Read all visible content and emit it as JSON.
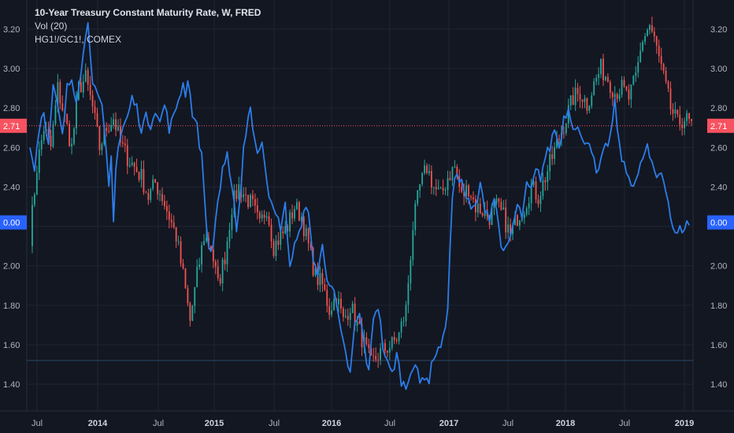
{
  "legend": {
    "title": "10-Year Treasury Constant Maturity Rate, W, FRED",
    "volume": "Vol (20)",
    "ratio": "HG1!/GC1!, COMEX"
  },
  "chart_data": {
    "type": "candlestick",
    "y_ticks": [
      "3.20",
      "3.00",
      "2.80",
      "2.60",
      "2.40",
      "2.20",
      "2.00",
      "1.80",
      "1.60",
      "1.40"
    ],
    "x_ticks": [
      "Jul",
      "2014",
      "Jul",
      "2015",
      "Jul",
      "2016",
      "Jul",
      "2017",
      "Jul",
      "2018",
      "Jul",
      "2019"
    ],
    "ylim": [
      1.32,
      3.28
    ],
    "last_price": {
      "label": "2.71",
      "value": 2.71,
      "color": "#f7525f"
    },
    "ratio_marker": {
      "label": "0.00",
      "value": 2.22,
      "color": "#2962ff"
    },
    "horizontal_line": 1.52,
    "colors": {
      "up": "#26a69a",
      "down": "#ef5350",
      "line": "#2b7de9",
      "bg": "#131722",
      "grid": "#1e2433"
    },
    "price_anchors": [
      [
        0,
        2.15
      ],
      [
        3,
        2.5
      ],
      [
        6,
        2.7
      ],
      [
        9,
        2.6
      ],
      [
        12,
        2.9
      ],
      [
        15,
        2.75
      ],
      [
        18,
        2.6
      ],
      [
        21,
        2.9
      ],
      [
        24,
        2.95
      ],
      [
        27,
        2.8
      ],
      [
        30,
        2.6
      ],
      [
        33,
        2.7
      ],
      [
        36,
        2.75
      ],
      [
        39,
        2.62
      ],
      [
        42,
        2.55
      ],
      [
        45,
        2.5
      ],
      [
        48,
        2.45
      ],
      [
        51,
        2.35
      ],
      [
        54,
        2.42
      ],
      [
        57,
        2.35
      ],
      [
        60,
        2.25
      ],
      [
        63,
        2.15
      ],
      [
        66,
        1.95
      ],
      [
        69,
        1.72
      ],
      [
        72,
        1.95
      ],
      [
        75,
        2.15
      ],
      [
        78,
        2.1
      ],
      [
        81,
        1.9
      ],
      [
        84,
        2.05
      ],
      [
        87,
        2.3
      ],
      [
        90,
        2.4
      ],
      [
        93,
        2.35
      ],
      [
        96,
        2.3
      ],
      [
        99,
        2.2
      ],
      [
        102,
        2.3
      ],
      [
        105,
        2.1
      ],
      [
        108,
        2.15
      ],
      [
        111,
        2.2
      ],
      [
        114,
        2.3
      ],
      [
        117,
        2.25
      ],
      [
        120,
        2.1
      ],
      [
        123,
        1.95
      ],
      [
        126,
        1.9
      ],
      [
        129,
        1.78
      ],
      [
        132,
        1.85
      ],
      [
        135,
        1.72
      ],
      [
        138,
        1.8
      ],
      [
        141,
        1.7
      ],
      [
        144,
        1.6
      ],
      [
        147,
        1.5
      ],
      [
        150,
        1.55
      ],
      [
        153,
        1.58
      ],
      [
        156,
        1.6
      ],
      [
        159,
        1.65
      ],
      [
        162,
        1.78
      ],
      [
        165,
        2.2
      ],
      [
        168,
        2.4
      ],
      [
        171,
        2.5
      ],
      [
        174,
        2.4
      ],
      [
        177,
        2.35
      ],
      [
        180,
        2.45
      ],
      [
        183,
        2.5
      ],
      [
        186,
        2.35
      ],
      [
        189,
        2.4
      ],
      [
        192,
        2.3
      ],
      [
        195,
        2.28
      ],
      [
        198,
        2.25
      ],
      [
        201,
        2.3
      ],
      [
        204,
        2.25
      ],
      [
        207,
        2.15
      ],
      [
        210,
        2.25
      ],
      [
        213,
        2.3
      ],
      [
        216,
        2.4
      ],
      [
        219,
        2.35
      ],
      [
        222,
        2.45
      ],
      [
        225,
        2.55
      ],
      [
        228,
        2.65
      ],
      [
        231,
        2.75
      ],
      [
        234,
        2.85
      ],
      [
        237,
        2.88
      ],
      [
        240,
        2.82
      ],
      [
        243,
        2.92
      ],
      [
        246,
        3.0
      ],
      [
        249,
        2.95
      ],
      [
        252,
        2.88
      ],
      [
        255,
        2.9
      ],
      [
        258,
        2.85
      ],
      [
        261,
        2.95
      ],
      [
        264,
        3.15
      ],
      [
        267,
        3.22
      ],
      [
        270,
        3.1
      ],
      [
        273,
        2.95
      ],
      [
        276,
        2.8
      ],
      [
        279,
        2.72
      ],
      [
        282,
        2.75
      ],
      [
        285,
        2.71
      ]
    ],
    "ratio_line": [
      [
        0,
        2.6
      ],
      [
        2,
        2.5
      ],
      [
        4,
        2.7
      ],
      [
        6,
        2.8
      ],
      [
        8,
        2.6
      ],
      [
        10,
        2.9
      ],
      [
        12,
        2.8
      ],
      [
        14,
        2.65
      ],
      [
        16,
        2.9
      ],
      [
        18,
        2.95
      ],
      [
        20,
        2.85
      ],
      [
        22,
        3.0
      ],
      [
        24,
        3.15
      ],
      [
        25,
        3.25
      ],
      [
        27,
        2.95
      ],
      [
        29,
        2.85
      ],
      [
        31,
        2.8
      ],
      [
        33,
        2.55
      ],
      [
        34,
        2.4
      ],
      [
        35,
        2.55
      ],
      [
        36,
        2.25
      ],
      [
        37,
        2.5
      ],
      [
        38,
        2.6
      ],
      [
        40,
        2.7
      ],
      [
        42,
        2.75
      ],
      [
        44,
        2.85
      ],
      [
        46,
        2.8
      ],
      [
        48,
        2.7
      ],
      [
        50,
        2.75
      ],
      [
        52,
        2.72
      ],
      [
        54,
        2.8
      ],
      [
        56,
        2.72
      ],
      [
        58,
        2.82
      ],
      [
        60,
        2.7
      ],
      [
        62,
        2.75
      ],
      [
        64,
        2.85
      ],
      [
        66,
        2.92
      ],
      [
        67,
        2.88
      ],
      [
        68,
        2.95
      ],
      [
        70,
        2.78
      ],
      [
        72,
        2.7
      ],
      [
        74,
        2.55
      ],
      [
        75,
        2.4
      ],
      [
        76,
        2.2
      ],
      [
        78,
        2.05
      ],
      [
        79,
        2.1
      ],
      [
        80,
        2.25
      ],
      [
        82,
        2.4
      ],
      [
        83,
        2.5
      ],
      [
        85,
        2.55
      ],
      [
        86,
        2.45
      ],
      [
        88,
        2.3
      ],
      [
        89,
        2.2
      ],
      [
        91,
        2.4
      ],
      [
        92,
        2.6
      ],
      [
        93,
        2.68
      ],
      [
        95,
        2.82
      ],
      [
        96,
        2.7
      ],
      [
        98,
        2.55
      ],
      [
        100,
        2.65
      ],
      [
        102,
        2.45
      ],
      [
        104,
        2.3
      ],
      [
        106,
        2.25
      ],
      [
        108,
        2.2
      ],
      [
        110,
        2.3
      ],
      [
        112,
        2.0
      ],
      [
        114,
        2.1
      ],
      [
        116,
        2.15
      ],
      [
        118,
        2.3
      ],
      [
        120,
        2.25
      ],
      [
        122,
        2.05
      ],
      [
        124,
        1.95
      ],
      [
        126,
        2.1
      ],
      [
        128,
        1.95
      ],
      [
        130,
        1.9
      ],
      [
        132,
        1.8
      ],
      [
        134,
        1.65
      ],
      [
        136,
        1.55
      ],
      [
        138,
        1.45
      ],
      [
        140,
        1.7
      ],
      [
        142,
        1.75
      ],
      [
        144,
        1.6
      ],
      [
        146,
        1.45
      ],
      [
        148,
        1.75
      ],
      [
        150,
        1.8
      ],
      [
        152,
        1.6
      ],
      [
        154,
        1.5
      ],
      [
        156,
        1.45
      ],
      [
        158,
        1.55
      ],
      [
        160,
        1.42
      ],
      [
        162,
        1.38
      ],
      [
        164,
        1.48
      ],
      [
        166,
        1.5
      ],
      [
        168,
        1.4
      ],
      [
        170,
        1.45
      ],
      [
        172,
        1.42
      ],
      [
        174,
        1.55
      ],
      [
        176,
        1.58
      ],
      [
        178,
        1.62
      ],
      [
        180,
        1.8
      ],
      [
        182,
        2.35
      ],
      [
        184,
        2.48
      ],
      [
        186,
        2.42
      ],
      [
        188,
        2.35
      ],
      [
        190,
        2.28
      ],
      [
        192,
        2.3
      ],
      [
        194,
        2.4
      ],
      [
        196,
        2.3
      ],
      [
        198,
        2.25
      ],
      [
        200,
        2.35
      ],
      [
        202,
        2.2
      ],
      [
        204,
        2.05
      ],
      [
        206,
        2.1
      ],
      [
        208,
        2.2
      ],
      [
        210,
        2.3
      ],
      [
        212,
        2.25
      ],
      [
        214,
        2.4
      ],
      [
        216,
        2.38
      ],
      [
        218,
        2.48
      ],
      [
        220,
        2.45
      ],
      [
        222,
        2.55
      ],
      [
        224,
        2.6
      ],
      [
        226,
        2.7
      ],
      [
        228,
        2.6
      ],
      [
        230,
        2.75
      ],
      [
        232,
        2.8
      ],
      [
        234,
        2.72
      ],
      [
        236,
        2.7
      ],
      [
        238,
        2.62
      ],
      [
        240,
        2.65
      ],
      [
        242,
        2.6
      ],
      [
        244,
        2.45
      ],
      [
        246,
        2.52
      ],
      [
        248,
        2.6
      ],
      [
        250,
        2.65
      ],
      [
        252,
        2.82
      ],
      [
        254,
        2.6
      ],
      [
        256,
        2.5
      ],
      [
        258,
        2.45
      ],
      [
        260,
        2.42
      ],
      [
        262,
        2.45
      ],
      [
        264,
        2.55
      ],
      [
        266,
        2.6
      ],
      [
        268,
        2.5
      ],
      [
        270,
        2.45
      ],
      [
        272,
        2.48
      ],
      [
        274,
        2.4
      ],
      [
        276,
        2.25
      ],
      [
        278,
        2.15
      ],
      [
        280,
        2.18
      ],
      [
        282,
        2.2
      ],
      [
        284,
        2.22
      ]
    ]
  }
}
